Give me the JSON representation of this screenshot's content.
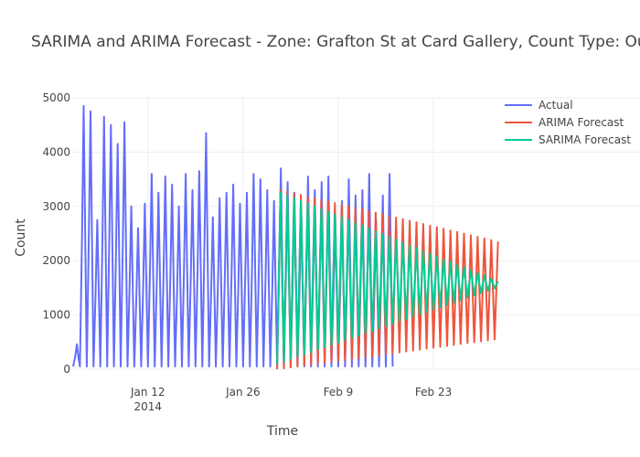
{
  "chart_data": {
    "type": "line",
    "title": "SARIMA and ARIMA Forecast - Zone: Grafton St at Card Gallery, Count Type: OutCount",
    "xlabel": "Time",
    "ylabel": "Count",
    "x_range": [
      "2014-01-01",
      "2014-03-04"
    ],
    "ylim": [
      0,
      5000
    ],
    "y_ticks": [
      0,
      1000,
      2000,
      3000,
      4000,
      5000
    ],
    "x_ticks": [
      {
        "date": "2014-01-12",
        "label": "Jan 12",
        "sublabel": "2014"
      },
      {
        "date": "2014-01-26",
        "label": "Jan 26",
        "sublabel": ""
      },
      {
        "date": "2014-02-09",
        "label": "Feb 9",
        "sublabel": ""
      },
      {
        "date": "2014-02-23",
        "label": "Feb 23",
        "sublabel": ""
      }
    ],
    "grid": true,
    "legend_position": "top-right",
    "daily_minimum_count": 50,
    "series": [
      {
        "name": "Actual",
        "color": "#636efa",
        "start_date": "2014-01-01",
        "daily_peaks": [
          460,
          4850,
          4750,
          2750,
          4650,
          4500,
          4150,
          4550,
          3000,
          2600,
          3050,
          3600,
          3250,
          3550,
          3400,
          3000,
          3600,
          3300,
          3650,
          4350,
          2800,
          3150,
          3250,
          3400,
          3050,
          3250,
          3600,
          3500,
          3300,
          3100,
          3700,
          3450,
          3250,
          2950,
          3550,
          3300,
          3450,
          3550,
          2850,
          3100,
          3500,
          3200,
          3300,
          3600,
          2750,
          3200,
          3600
        ]
      },
      {
        "name": "ARIMA Forecast",
        "color": "#ef553b",
        "start_date": "2014-01-31",
        "envelope_start": [
          0,
          3300
        ],
        "envelope_end": [
          550,
          2350
        ],
        "center": 1550
      },
      {
        "name": "SARIMA Forecast",
        "color": "#00cc96",
        "start_date": "2014-01-31",
        "envelope_start": [
          100,
          3260
        ],
        "envelope_end": [
          1490,
          1620
        ],
        "center": 1550
      }
    ]
  }
}
